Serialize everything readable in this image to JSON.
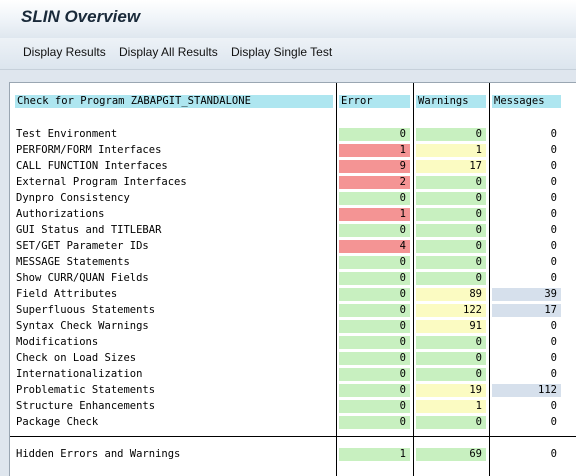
{
  "window": {
    "title": "SLIN Overview"
  },
  "toolbar": {
    "display_results": "Display Results",
    "display_all_results": "Display All Results",
    "display_single_test": "Display Single Test"
  },
  "table": {
    "headers": {
      "check": "Check for Program ZABAPGIT_STANDALONE",
      "error": "Error",
      "warnings": "Warnings",
      "messages": "Messages"
    },
    "rows": [
      {
        "label": "Test Environment",
        "error": "0",
        "warnings": "0",
        "messages": "0"
      },
      {
        "label": "PERFORM/FORM Interfaces",
        "error": "1",
        "warnings": "1",
        "messages": "0"
      },
      {
        "label": "CALL FUNCTION Interfaces",
        "error": "9",
        "warnings": "17",
        "messages": "0"
      },
      {
        "label": "External Program Interfaces",
        "error": "2",
        "warnings": "0",
        "messages": "0"
      },
      {
        "label": "Dynpro Consistency",
        "error": "0",
        "warnings": "0",
        "messages": "0"
      },
      {
        "label": "Authorizations",
        "error": "1",
        "warnings": "0",
        "messages": "0"
      },
      {
        "label": "GUI Status and TITLEBAR",
        "error": "0",
        "warnings": "0",
        "messages": "0"
      },
      {
        "label": "SET/GET Parameter IDs",
        "error": "4",
        "warnings": "0",
        "messages": "0"
      },
      {
        "label": "MESSAGE Statements",
        "error": "0",
        "warnings": "0",
        "messages": "0"
      },
      {
        "label": "Show CURR/QUAN Fields",
        "error": "0",
        "warnings": "0",
        "messages": "0"
      },
      {
        "label": "Field Attributes",
        "error": "0",
        "warnings": "89",
        "messages": "39"
      },
      {
        "label": "Superfluous Statements",
        "error": "0",
        "warnings": "122",
        "messages": "17"
      },
      {
        "label": "Syntax Check Warnings",
        "error": "0",
        "warnings": "91",
        "messages": "0"
      },
      {
        "label": "Modifications",
        "error": "0",
        "warnings": "0",
        "messages": "0"
      },
      {
        "label": "Check on Load Sizes",
        "error": "0",
        "warnings": "0",
        "messages": "0"
      },
      {
        "label": "Internationalization",
        "error": "0",
        "warnings": "0",
        "messages": "0"
      },
      {
        "label": "Problematic Statements",
        "error": "0",
        "warnings": "19",
        "messages": "112"
      },
      {
        "label": "Structure Enhancements",
        "error": "0",
        "warnings": "1",
        "messages": "0"
      },
      {
        "label": "Package Check",
        "error": "0",
        "warnings": "0",
        "messages": "0"
      }
    ],
    "total": {
      "label": "Hidden Errors and Warnings",
      "error": "1",
      "warnings": "69",
      "messages": "0"
    }
  },
  "colors": {
    "header_bg": "#aee6f0",
    "ok_green": "#c8f0c0",
    "error_red": "#f49494",
    "warning_yellow": "#fbfbc2",
    "message_blue": "#d6e0ec"
  }
}
